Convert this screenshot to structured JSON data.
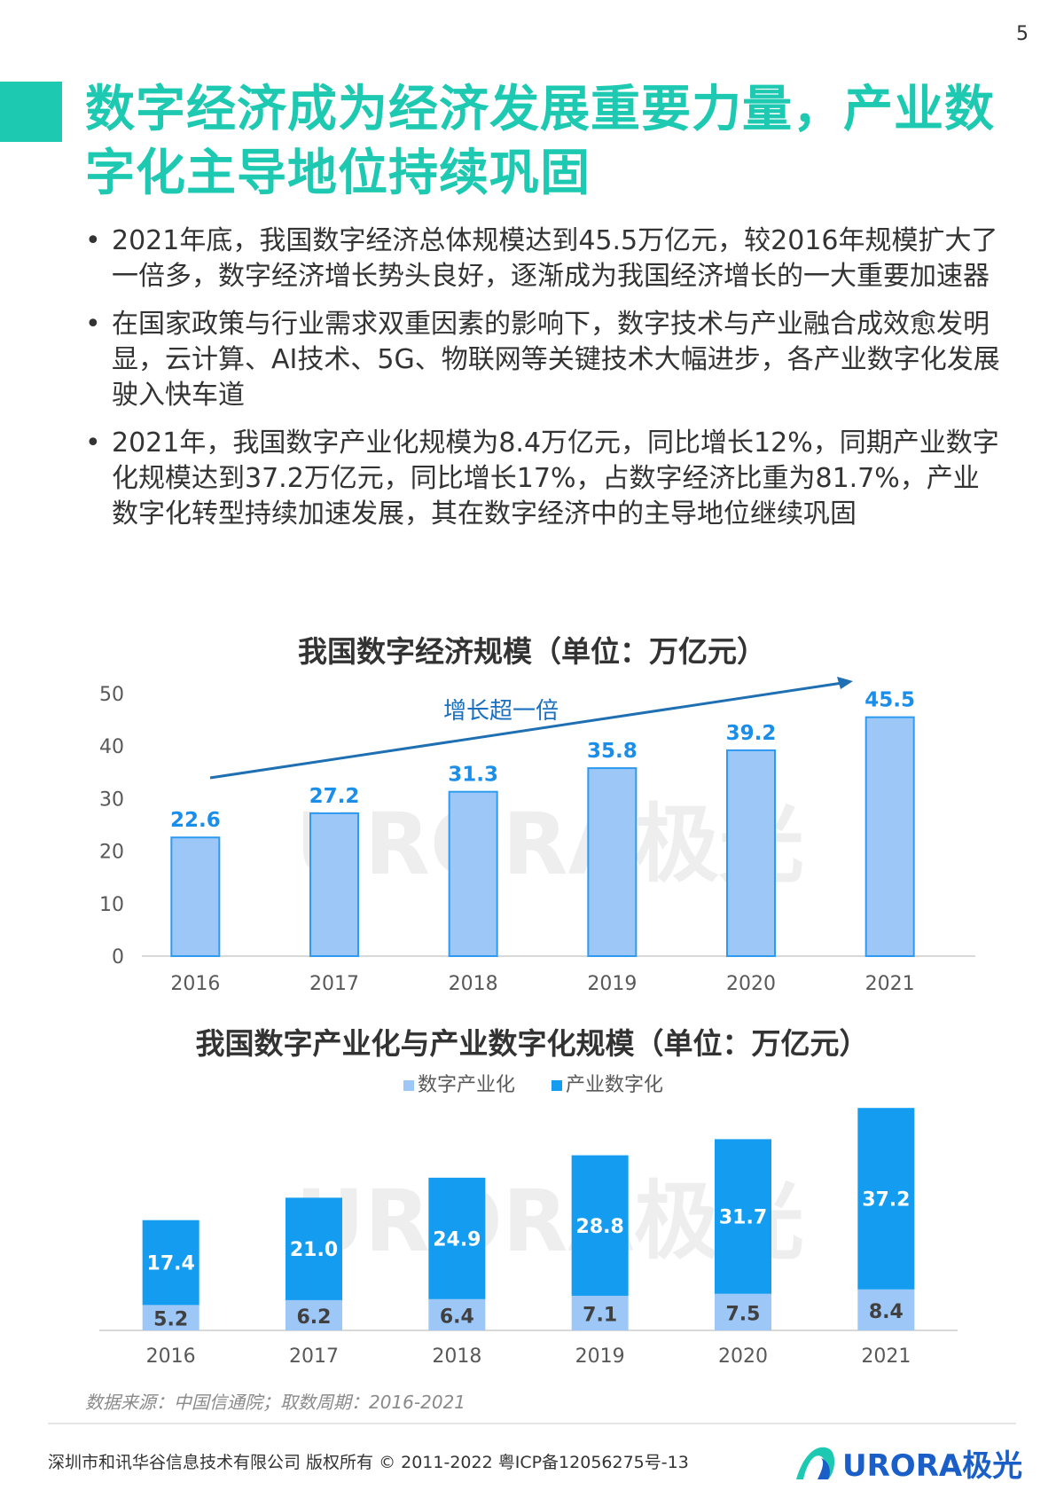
{
  "page_number": "5",
  "title": "数字经济成为经济发展重要力量，产业数字化主导地位持续巩固",
  "bullets": [
    "2021年底，我国数字经济总体规模达到45.5万亿元，较2016年规模扩大了一倍多，数字经济增长势头良好，逐渐成为我国经济增长的一大重要加速器",
    "在国家政策与行业需求双重因素的影响下，数字技术与产业融合成效愈发明显，云计算、AI技术、5G、物联网等关键技术大幅进步，各产业数字化发展驶入快车道",
    "2021年，我国数字产业化规模为8.4万亿元，同比增长12%，同期产业数字化规模达到37.2万亿元，同比增长17%，占数字经济比重为81.7%，产业数字化转型持续加速发展，其在数字经济中的主导地位继续巩固"
  ],
  "bullet_symbol": "•",
  "watermark": "URORA极光",
  "chart_data": [
    {
      "type": "bar",
      "title": "我国数字经济规模（单位：万亿元）",
      "categories": [
        "2016",
        "2017",
        "2018",
        "2019",
        "2020",
        "2021"
      ],
      "values": [
        22.6,
        27.2,
        31.3,
        35.8,
        39.2,
        45.5
      ],
      "value_labels": [
        "22.6",
        "27.2",
        "31.3",
        "35.8",
        "39.2",
        "45.5"
      ],
      "yticks": [
        "0",
        "10",
        "20",
        "30",
        "40",
        "50"
      ],
      "ylim": [
        0,
        50
      ],
      "annotation": "增长超一倍",
      "colors": {
        "bar": "#9dc7f7",
        "bar_border": "#2f9bf0",
        "label": "#1a8ee8",
        "arrow": "#1f6fb3"
      }
    },
    {
      "type": "bar",
      "stacked": true,
      "title": "我国数字产业化与产业数字化规模（单位：万亿元）",
      "categories": [
        "2016",
        "2017",
        "2018",
        "2019",
        "2020",
        "2021"
      ],
      "series": [
        {
          "name": "数字产业化",
          "values": [
            5.2,
            6.2,
            6.4,
            7.1,
            7.5,
            8.4
          ],
          "labels": [
            "5.2",
            "6.2",
            "6.4",
            "7.1",
            "7.5",
            "8.4"
          ],
          "color": "#9dc7f7"
        },
        {
          "name": "产业数字化",
          "values": [
            17.4,
            21.0,
            24.9,
            28.8,
            31.7,
            37.2
          ],
          "labels": [
            "17.4",
            "21.0",
            "24.9",
            "28.8",
            "31.7",
            "37.2"
          ],
          "color": "#139cf0"
        }
      ],
      "ylim": [
        0,
        46
      ],
      "legend_position": "top"
    }
  ],
  "source": "数据来源：中国信通院；取数周期：2016-2021",
  "footer": {
    "copyright": "深圳市和讯华谷信息技术有限公司 版权所有 © 2011-2022 粤ICP备12056275号-13",
    "logo_text": "URORA极光"
  },
  "colors": {
    "accent": "#1ec9b2",
    "logo_blue": "#1a5fc8"
  }
}
